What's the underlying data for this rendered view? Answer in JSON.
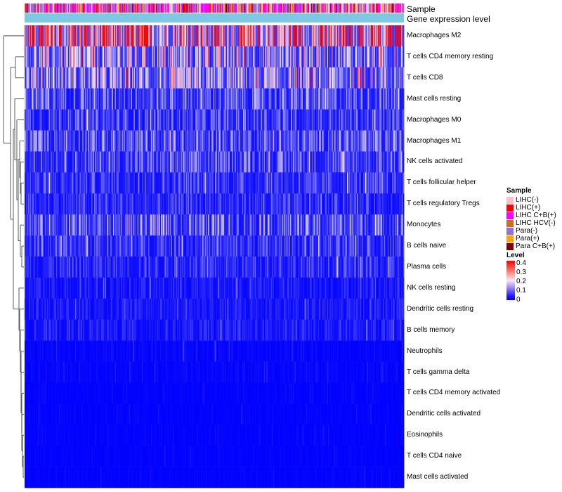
{
  "chart_data": {
    "type": "heatmap",
    "title": "",
    "annotation_rows": [
      "Sample",
      "Gene expression level"
    ],
    "rows": [
      "Macrophages M2",
      "T cells CD4 memory resting",
      "T cells CD8",
      "Mast cells resting",
      "Macrophages M0",
      "Macrophages M1",
      "NK cells activated",
      "T cells follicular helper",
      "T cells regulatory  Tregs",
      "Monocytes",
      "B cells naive",
      "Plasma cells",
      "NK cells resting",
      "Dendritic cells resting",
      "B cells memory",
      "Neutrophils",
      "T cells gamma delta",
      "T cells CD4 memory activated",
      "Dendritic cells activated",
      "Eosinophils",
      "T cells CD4 naive",
      "Mast cells activated"
    ],
    "row_mean_level": [
      0.32,
      0.16,
      0.15,
      0.09,
      0.07,
      0.09,
      0.08,
      0.06,
      0.05,
      0.09,
      0.06,
      0.05,
      0.03,
      0.03,
      0.03,
      0.02,
      0.02,
      0.01,
      0.01,
      0.01,
      0.01,
      0.01
    ],
    "sample_legend": {
      "title": "Sample",
      "items": [
        {
          "label": "LIHC(-)",
          "color": "#ffc0cb"
        },
        {
          "label": "LIHC(+)",
          "color": "#ff0000"
        },
        {
          "label": "LIHC C+B(+)",
          "color": "#ff00ff"
        },
        {
          "label": "LIHC HCV(-)",
          "color": "#d2691e"
        },
        {
          "label": "Para(-)",
          "color": "#9370db"
        },
        {
          "label": "Para(+)",
          "color": "#ffa500"
        },
        {
          "label": "Para C+B(+)",
          "color": "#800000"
        }
      ]
    },
    "gene_expression_color": "#7ec8e3",
    "level_legend": {
      "title": "Level",
      "ticks": [
        "0.4",
        "0.3",
        "0.2",
        "0.1",
        "0"
      ],
      "min": 0,
      "max": 0.4,
      "colors": {
        "low": "#0000ff",
        "mid": "#f4e9fb",
        "high": "#ff0000"
      }
    },
    "n_columns": 420
  }
}
